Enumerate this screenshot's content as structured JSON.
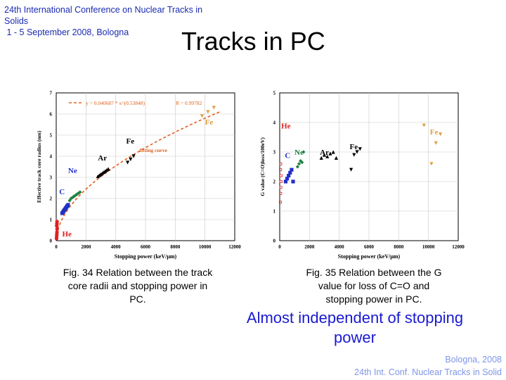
{
  "header": {
    "conference_lines": [
      "24th International Conference on Nuclear Tracks in",
      "Solids",
      " 1 - 5 September 2008, Bologna"
    ],
    "slide_title": "Tracks in PC"
  },
  "colors": {
    "conference": "#1a2bb0",
    "conclusion": "#1a1ad0",
    "footer": "#7f95e6",
    "fit_curve": "#e06020",
    "He": "#e02020",
    "C": "#2030c8",
    "Ne": "#208040",
    "Ar": "#000000",
    "Fe": "#e0a040"
  },
  "figure34": {
    "caption_lines": [
      "Fig. 34 Relation between the track",
      "core radii and stopping power in",
      "PC."
    ],
    "chart_data": {
      "type": "scatter",
      "xlabel": "Stopping power (keV/μm)",
      "ylabel": "Effective track core radius (nm)",
      "xlim": [
        0,
        12000
      ],
      "ylim": [
        0,
        7
      ],
      "xticks": [
        "0",
        "2000",
        "4000",
        "6000",
        "8000",
        "10000",
        "12000"
      ],
      "yticks": [
        "0",
        "1",
        "2",
        "3",
        "4",
        "5",
        "6",
        "7"
      ],
      "fit": {
        "equation": "y = 0.040687 * x^(0.53848)",
        "r": "R = 0.99782",
        "label": "fitting curve",
        "a": 0.040687,
        "b": 0.53848
      },
      "ion_labels": [
        {
          "text": "He",
          "x": 400,
          "y": 0.2,
          "color": "#e02020"
        },
        {
          "text": "C",
          "x": 200,
          "y": 2.2,
          "color": "#2030c8"
        },
        {
          "text": "Ne",
          "x": 800,
          "y": 3.2,
          "color": "#2030c8"
        },
        {
          "text": "Ar",
          "x": 2800,
          "y": 3.8,
          "color": "#000000"
        },
        {
          "text": "Fe",
          "x": 4700,
          "y": 4.6,
          "color": "#000000"
        },
        {
          "text": "Fe",
          "x": 10000,
          "y": 5.5,
          "color": "#e0a040"
        }
      ],
      "series": [
        {
          "ion": "He",
          "color": "#e02020",
          "marker": "circle",
          "x": [
            20,
            30,
            40,
            50,
            60,
            35,
            45,
            55
          ],
          "y": [
            0.1,
            0.2,
            0.3,
            0.4,
            0.55,
            0.7,
            0.8,
            0.9
          ]
        },
        {
          "ion": "C",
          "color": "#2030c8",
          "marker": "square",
          "x": [
            400,
            450,
            500,
            550,
            600,
            650,
            700,
            750,
            800
          ],
          "y": [
            1.3,
            1.35,
            1.4,
            1.45,
            1.5,
            1.55,
            1.6,
            1.65,
            1.7
          ]
        },
        {
          "ion": "Ne",
          "color": "#208040",
          "marker": "diamond",
          "x": [
            900,
            1000,
            1100,
            1200,
            1300,
            1400,
            1500,
            1600
          ],
          "y": [
            1.9,
            2.0,
            2.05,
            2.1,
            2.15,
            2.2,
            2.25,
            2.3
          ]
        },
        {
          "ion": "Ar",
          "color": "#000000",
          "marker": "triangle-up",
          "x": [
            2800,
            2900,
            3000,
            3100,
            3200,
            3300,
            3400,
            3500
          ],
          "y": [
            3.05,
            3.1,
            3.15,
            3.2,
            3.25,
            3.3,
            3.35,
            3.4
          ]
        },
        {
          "ion": "Fe",
          "color": "#000000",
          "marker": "triangle-down",
          "x": [
            4800,
            5000,
            5200
          ],
          "y": [
            3.7,
            3.85,
            4.0
          ]
        },
        {
          "ion": "Fe",
          "color": "#e0a040",
          "marker": "triangle-down",
          "x": [
            9800,
            10200,
            10600
          ],
          "y": [
            5.9,
            6.1,
            6.3
          ]
        }
      ]
    }
  },
  "figure35": {
    "caption_lines": [
      "Fig. 35 Relation between the G",
      "value for loss of C=O and",
      "stopping power in PC."
    ],
    "chart_data": {
      "type": "scatter",
      "xlabel": "Stopping power (keV/μm)",
      "ylabel": "G value (C=O)loss/100eV)",
      "xlim": [
        0,
        12000
      ],
      "ylim": [
        0,
        5
      ],
      "xticks": [
        "0",
        "2000",
        "4000",
        "6000",
        "8000",
        "10000",
        "12000"
      ],
      "yticks": [
        "0",
        "1",
        "2",
        "3",
        "4",
        "5"
      ],
      "ion_labels": [
        {
          "text": "He",
          "x": 100,
          "y": 3.8,
          "color": "#e02020"
        },
        {
          "text": "C",
          "x": 350,
          "y": 2.8,
          "color": "#2030c8"
        },
        {
          "text": "Ne",
          "x": 1000,
          "y": 2.9,
          "color": "#208040"
        },
        {
          "text": "Ar",
          "x": 2700,
          "y": 2.9,
          "color": "#000000"
        },
        {
          "text": "Fe",
          "x": 4700,
          "y": 3.1,
          "color": "#000000"
        },
        {
          "text": "Fe",
          "x": 10100,
          "y": 3.6,
          "color": "#e0a040"
        }
      ],
      "series": [
        {
          "ion": "He",
          "color": "#e02020",
          "marker": "open-square",
          "x": [
            50,
            60,
            70,
            80,
            90,
            55,
            65
          ],
          "y": [
            1.3,
            1.6,
            1.8,
            2.0,
            2.2,
            2.4,
            2.6
          ]
        },
        {
          "ion": "C",
          "color": "#2030c8",
          "marker": "square",
          "x": [
            400,
            500,
            600,
            700,
            800,
            900
          ],
          "y": [
            2.0,
            2.1,
            2.2,
            2.3,
            2.4,
            2.0
          ]
        },
        {
          "ion": "Ne",
          "color": "#208040",
          "marker": "diamond",
          "x": [
            1200,
            1300,
            1400,
            1500,
            1600
          ],
          "y": [
            2.5,
            2.6,
            2.7,
            2.65,
            3.0
          ]
        },
        {
          "ion": "Ar",
          "color": "#000000",
          "marker": "triangle-up",
          "x": [
            2800,
            3000,
            3200,
            3400,
            3600,
            3800
          ],
          "y": [
            2.8,
            2.9,
            2.85,
            2.95,
            3.0,
            2.8
          ]
        },
        {
          "ion": "Fe",
          "color": "#000000",
          "marker": "triangle-down",
          "x": [
            4800,
            5000,
            5200,
            5400
          ],
          "y": [
            2.4,
            2.9,
            3.0,
            3.1
          ]
        },
        {
          "ion": "Fe",
          "color": "#e0a040",
          "marker": "triangle-down",
          "x": [
            9700,
            10200,
            10500,
            10800
          ],
          "y": [
            3.9,
            2.6,
            3.3,
            3.6
          ]
        }
      ]
    }
  },
  "conclusion_lines": [
    "Almost independent of stopping",
    "power"
  ],
  "footer_lines": [
    "Bologna,  2008",
    "24th Int. Conf. Nuclear Tracks in Solid"
  ]
}
